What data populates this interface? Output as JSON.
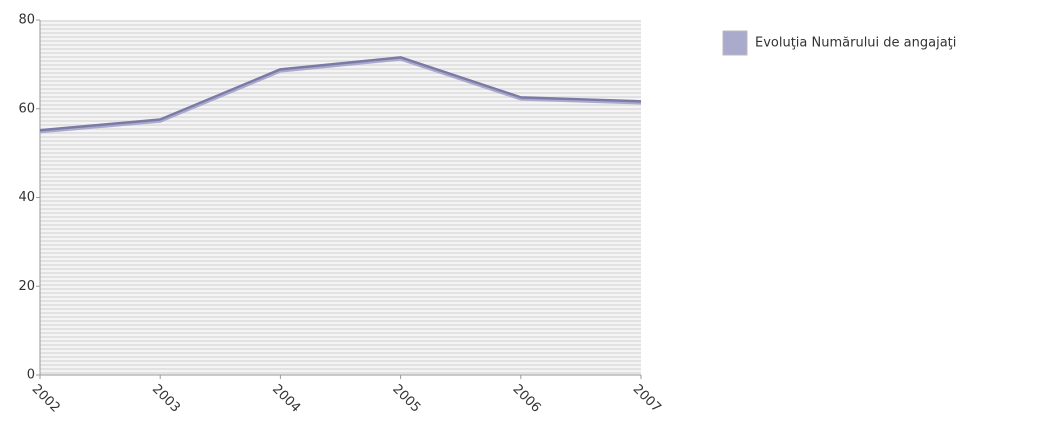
{
  "chart_data": {
    "type": "line",
    "categories": [
      "2002",
      "2003",
      "2004",
      "2005",
      "2006",
      "2007"
    ],
    "series": [
      {
        "name": "Evoluţia Numărului de angajaţi",
        "color": "#aaaacc",
        "line_color": "#7a7aa6",
        "values": [
          55,
          57.4,
          68.7,
          71.4,
          62.4,
          61.5
        ]
      }
    ],
    "ylim": [
      0,
      80
    ],
    "yticks": [
      0,
      20,
      40,
      60,
      80
    ],
    "grid": true,
    "legend": "top-right"
  }
}
